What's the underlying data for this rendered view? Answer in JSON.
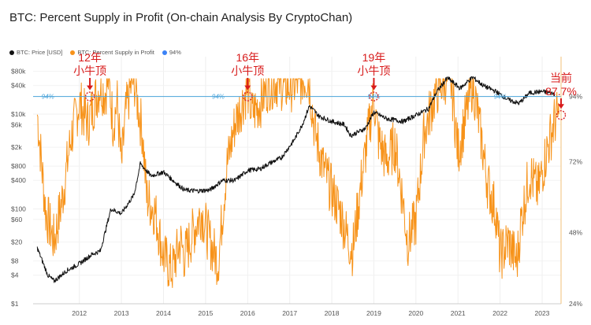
{
  "chart_data": {
    "type": "line",
    "title": "BTC: Percent Supply in Profit (On-chain Analysis By CryptoChan)",
    "legend": [
      {
        "name": "BTC: Price [USD]",
        "color": "#111111"
      },
      {
        "name": "BTC: Percent Supply in Profit",
        "color": "#f7931a"
      },
      {
        "name": "94%",
        "color": "#3b82f6"
      }
    ],
    "x_ticks": [
      "2012",
      "2013",
      "2014",
      "2015",
      "2016",
      "2017",
      "2018",
      "2019",
      "2020",
      "2021",
      "2022",
      "2023"
    ],
    "left_axis": {
      "scale": "log",
      "ticks": [
        "$80k",
        "$40k",
        "$10k",
        "$6k",
        "$2k",
        "$800",
        "$400",
        "$100",
        "$60",
        "$20",
        "$8",
        "$4",
        "$1"
      ]
    },
    "right_axis": {
      "ticks": [
        "94%",
        "72%",
        "48%",
        "24%"
      ]
    },
    "reference_line": {
      "value": 94,
      "label": "94%",
      "color": "#4aa3d9"
    },
    "price_series": {
      "name": "BTC: Price [USD]",
      "x": [
        2011.5,
        2011.75,
        2011.9,
        2012.2,
        2012.5,
        2012.8,
        2013.0,
        2013.25,
        2013.5,
        2013.8,
        2013.95,
        2014.2,
        2014.5,
        2014.8,
        2015.0,
        2015.3,
        2015.6,
        2015.9,
        2016.2,
        2016.5,
        2016.8,
        2017.0,
        2017.3,
        2017.6,
        2017.8,
        2017.97,
        2018.2,
        2018.5,
        2018.8,
        2018.95,
        2019.3,
        2019.5,
        2019.8,
        2020.2,
        2020.5,
        2020.8,
        2021.0,
        2021.25,
        2021.55,
        2021.85,
        2022.1,
        2022.4,
        2022.7,
        2022.95,
        2023.2,
        2023.5,
        2023.8
      ],
      "y": [
        15,
        4,
        3,
        5,
        7,
        11,
        13,
        100,
        80,
        200,
        900,
        500,
        600,
        350,
        250,
        240,
        250,
        400,
        400,
        650,
        700,
        900,
        1200,
        2800,
        6000,
        15000,
        9000,
        7000,
        6000,
        3500,
        5000,
        11000,
        8000,
        7000,
        9500,
        13000,
        30000,
        58000,
        35000,
        60000,
        40000,
        30000,
        20000,
        16800,
        28000,
        30000,
        27000
      ]
    },
    "supply_series": {
      "name": "BTC: Percent Supply in Profit",
      "x": [
        2011.5,
        2011.7,
        2011.9,
        2012.1,
        2012.3,
        2012.5,
        2012.7,
        2012.9,
        2013.0,
        2013.1,
        2013.2,
        2013.3,
        2013.4,
        2013.5,
        2013.6,
        2013.7,
        2013.8,
        2013.9,
        2014.0,
        2014.1,
        2014.3,
        2014.5,
        2014.7,
        2014.9,
        2015.0,
        2015.2,
        2015.4,
        2015.6,
        2015.8,
        2016.0,
        2016.2,
        2016.4,
        2016.5,
        2016.6,
        2016.8,
        2016.9,
        2017.0,
        2017.2,
        2017.4,
        2017.6,
        2017.8,
        2017.95,
        2018.1,
        2018.3,
        2018.5,
        2018.7,
        2018.9,
        2019.0,
        2019.2,
        2019.4,
        2019.5,
        2019.6,
        2019.8,
        2020.0,
        2020.2,
        2020.3,
        2020.5,
        2020.7,
        2020.9,
        2021.0,
        2021.2,
        2021.35,
        2021.5,
        2021.7,
        2021.85,
        2022.0,
        2022.2,
        2022.4,
        2022.5,
        2022.7,
        2022.9,
        2023.0,
        2023.2,
        2023.4,
        2023.6,
        2023.8,
        2023.9
      ],
      "y": [
        88,
        55,
        45,
        60,
        80,
        92,
        85,
        94,
        98,
        95,
        100,
        85,
        92,
        70,
        88,
        96,
        100,
        90,
        82,
        60,
        55,
        40,
        35,
        45,
        40,
        48,
        55,
        45,
        38,
        70,
        85,
        93,
        97,
        88,
        92,
        95,
        98,
        99,
        97,
        98,
        100,
        100,
        82,
        70,
        62,
        55,
        45,
        42,
        65,
        85,
        94,
        80,
        72,
        78,
        58,
        45,
        52,
        82,
        92,
        96,
        100,
        98,
        75,
        88,
        99,
        85,
        65,
        55,
        40,
        45,
        38,
        52,
        68,
        62,
        75,
        86,
        88
      ]
    },
    "annotations": [
      {
        "text_line1": "12年",
        "text_line2": "小牛顶",
        "x": 2012.75,
        "y": 94
      },
      {
        "text_line1": "16年",
        "text_line2": "小牛顶",
        "x": 2016.5,
        "y": 94
      },
      {
        "text_line1": "19年",
        "text_line2": "小牛顶",
        "x": 2019.5,
        "y": 94
      },
      {
        "text_line1": "当前",
        "text_line2": "87.7%",
        "x": 2023.95,
        "y": 87.7
      }
    ]
  }
}
